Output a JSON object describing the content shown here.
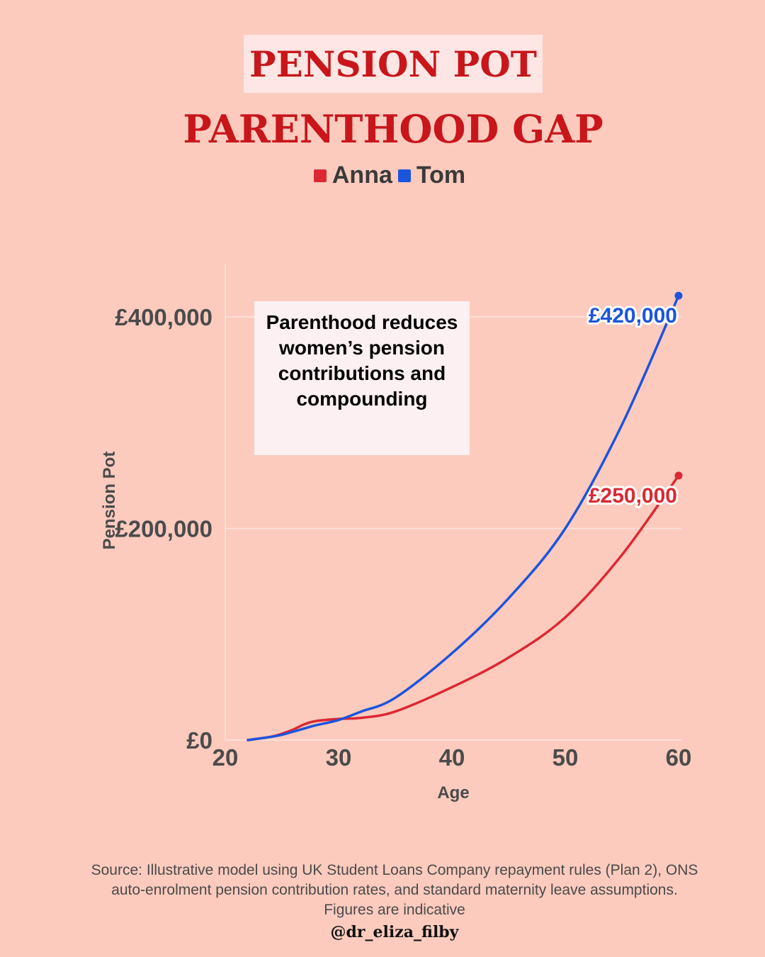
{
  "header": {
    "title_line1": "PENSION POT",
    "title_line2": "PARENTHOOD GAP"
  },
  "colors": {
    "background": "#fccbbe",
    "anna": "#dc2832",
    "tom": "#1c54dc",
    "title": "#c8161b"
  },
  "annotation": {
    "text": "Parenthood reduces women’s pension contributions and compounding"
  },
  "footer": {
    "source": "Source: Illustrative model using UK Student Loans Company repayment rules (Plan 2), ONS auto-enrolment pension contribution rates, and standard maternity leave assumptions. Figures are indicative",
    "handle": "@dr_eliza_filby"
  },
  "chart_data": {
    "type": "line",
    "xlabel": "Age",
    "ylabel": "Pension Pot",
    "xlim": [
      20,
      60
    ],
    "ylim": [
      0,
      450000
    ],
    "x_ticks": [
      20,
      30,
      40,
      50,
      60
    ],
    "y_ticks": [
      0,
      200000,
      400000
    ],
    "y_tick_labels": [
      "£0",
      "£200,000",
      "£400,000"
    ],
    "grid": "horizontal",
    "legend_position": "top-center",
    "series": [
      {
        "name": "Anna",
        "color": "#dc2832",
        "x": [
          22,
          24,
          25,
          26,
          27,
          28,
          30,
          32,
          35,
          40,
          45,
          50,
          55,
          60
        ],
        "y": [
          0,
          3000,
          6000,
          10000,
          15000,
          18000,
          20000,
          21000,
          27000,
          50000,
          78000,
          116000,
          175000,
          250000
        ],
        "end_label": "£250,000"
      },
      {
        "name": "Tom",
        "color": "#1c54dc",
        "x": [
          22,
          24,
          25,
          26,
          27,
          28,
          30,
          32,
          35,
          40,
          45,
          50,
          55,
          60
        ],
        "y": [
          0,
          3000,
          5000,
          8000,
          11000,
          14000,
          19000,
          27000,
          40000,
          82000,
          134000,
          200000,
          298000,
          420000
        ],
        "end_label": "£420,000"
      }
    ]
  }
}
